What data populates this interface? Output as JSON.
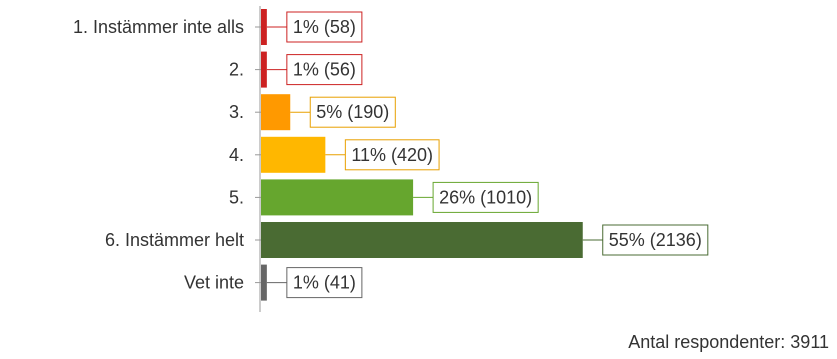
{
  "chart_data": {
    "type": "bar",
    "orientation": "horizontal",
    "categories": [
      "1. Instämmer inte alls",
      "2.",
      "3.",
      "4.",
      "5.",
      "6. Instämmer helt",
      "Vet inte"
    ],
    "percent": [
      1,
      1,
      5,
      11,
      26,
      55,
      1
    ],
    "values": [
      58,
      56,
      190,
      420,
      1010,
      2136,
      41
    ],
    "value_labels": [
      "1% (58)",
      "1% (56)",
      "5% (190)",
      "11% (420)",
      "26% (1010)",
      "55% (2136)",
      "1% (41)"
    ],
    "colors": [
      "#cc2222",
      "#cc2222",
      "#ff9900",
      "#ffb700",
      "#66a62e",
      "#4a6b33",
      "#666666"
    ],
    "label_border_colors": [
      "#cc2222",
      "#cc2222",
      "#e8a000",
      "#e8a000",
      "#66a62e",
      "#4a6b33",
      "#666666"
    ],
    "grid": false,
    "legend": "none"
  },
  "footer": {
    "respondents": "Antal respondenter: 3911"
  }
}
